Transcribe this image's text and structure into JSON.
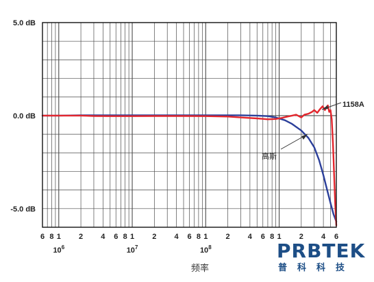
{
  "chart_data": {
    "type": "line",
    "title": "",
    "xlabel": "频率",
    "ylabel": "",
    "x_scale": "log",
    "xlim": [
      600000,
      6000000000
    ],
    "ylim": [
      -6,
      5
    ],
    "grid": true,
    "y_tick_labels": [
      {
        "value": 5,
        "label": "5.0 dB"
      },
      {
        "value": 0,
        "label": "0.0 dB"
      },
      {
        "value": -5,
        "label": "-5.0 dB"
      }
    ],
    "x_tick_labels": [
      {
        "value": 600000,
        "label": "6"
      },
      {
        "value": 800000,
        "label": "8"
      },
      {
        "value": 1000000,
        "label": "1"
      },
      {
        "value": 2000000,
        "label": "2"
      },
      {
        "value": 4000000,
        "label": "4"
      },
      {
        "value": 6000000,
        "label": "6"
      },
      {
        "value": 8000000,
        "label": "8"
      },
      {
        "value": 10000000,
        "label": "1"
      },
      {
        "value": 20000000,
        "label": "2"
      },
      {
        "value": 40000000,
        "label": "4"
      },
      {
        "value": 60000000,
        "label": "6"
      },
      {
        "value": 80000000,
        "label": "8"
      },
      {
        "value": 100000000,
        "label": "1"
      },
      {
        "value": 200000000,
        "label": "2"
      },
      {
        "value": 400000000,
        "label": "4"
      },
      {
        "value": 600000000,
        "label": "6"
      },
      {
        "value": 800000000,
        "label": "8"
      },
      {
        "value": 1000000000,
        "label": "1"
      },
      {
        "value": 2000000000,
        "label": "2"
      },
      {
        "value": 4000000000,
        "label": "4"
      },
      {
        "value": 6000000000,
        "label": "6"
      }
    ],
    "decade_labels": [
      {
        "value": 1000000,
        "base": "10",
        "exp": "6"
      },
      {
        "value": 10000000,
        "base": "10",
        "exp": "7"
      },
      {
        "value": 100000000,
        "base": "10",
        "exp": "8"
      }
    ],
    "series": [
      {
        "name": "高斯",
        "color": "#2b3f9a",
        "x": [
          600000,
          1000000,
          2000000,
          5000000,
          10000000,
          50000000,
          100000000,
          300000000,
          500000000,
          700000000,
          900000000,
          1200000000,
          1500000000,
          2000000000,
          2500000000,
          3000000000,
          3500000000,
          4000000000,
          4500000000,
          5000000000,
          5500000000,
          6000000000
        ],
        "y": [
          0,
          0,
          0.02,
          0.02,
          0.02,
          0.02,
          0.02,
          0.02,
          0,
          -0.03,
          -0.1,
          -0.25,
          -0.45,
          -0.8,
          -1.2,
          -1.7,
          -2.4,
          -3.2,
          -4.0,
          -4.7,
          -5.3,
          -5.7
        ]
      },
      {
        "name": "1158A",
        "color": "#e3262d",
        "x": [
          600000,
          1000000,
          2000000,
          3000000,
          5000000,
          10000000,
          20000000,
          50000000,
          100000000,
          200000000,
          300000000,
          500000000,
          700000000,
          900000000,
          1100000000,
          1300000000,
          1500000000,
          1700000000,
          2000000000,
          2200000000,
          2500000000,
          2800000000,
          3000000000,
          3300000000,
          3600000000,
          3900000000,
          4200000000,
          4400000000,
          4600000000,
          4800000000,
          5000000000,
          5200000000,
          5400000000,
          5600000000,
          5800000000,
          6000000000
        ],
        "y": [
          0,
          0,
          0,
          -0.02,
          -0.03,
          -0.03,
          -0.02,
          -0.02,
          -0.03,
          -0.05,
          -0.1,
          -0.15,
          -0.2,
          -0.18,
          -0.12,
          -0.05,
          0,
          0.05,
          -0.1,
          0.05,
          0.1,
          0.2,
          0.3,
          0.15,
          0.35,
          0.5,
          0.3,
          0.45,
          0.55,
          0.2,
          0.3,
          -0.2,
          -1.5,
          -3.2,
          -4.8,
          -5.9
        ]
      }
    ],
    "annotations": [
      {
        "text": "1158A",
        "series": "1158A"
      },
      {
        "text": "高斯",
        "series": "高斯"
      }
    ]
  },
  "logo": {
    "brand": "PRBTEK",
    "sub": "普科科技"
  }
}
